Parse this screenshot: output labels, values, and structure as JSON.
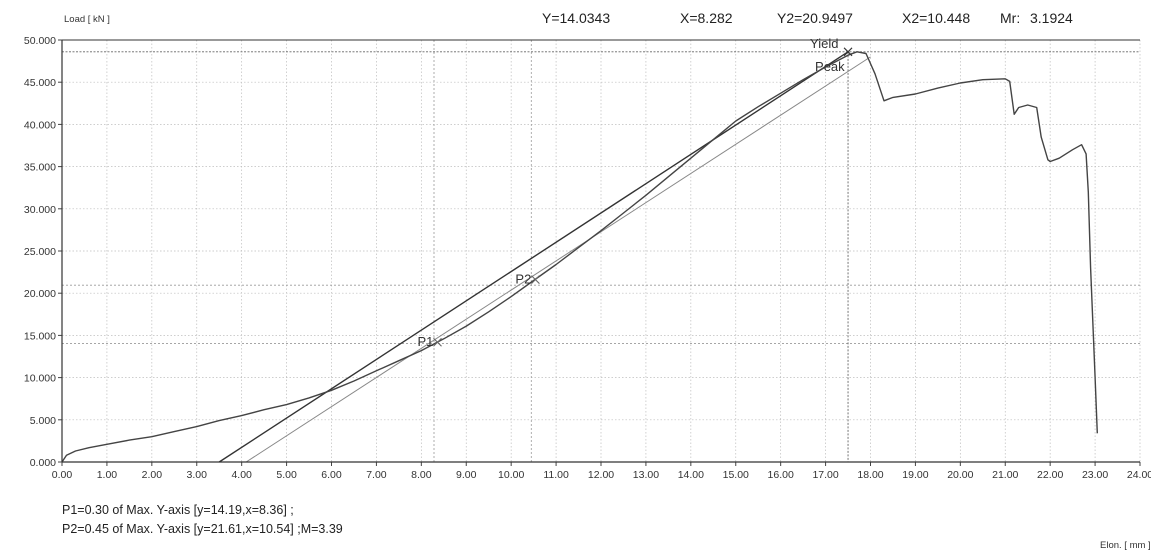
{
  "header": {
    "y_label": "Y=14.0343",
    "x_label": "X=8.282",
    "y2_label": "Y2=20.9497",
    "x2_label": "X2=10.448",
    "mr_name": "Mr:",
    "mr_value": "3.1924"
  },
  "footer": {
    "p1_text": "P1=0.30 of Max. Y-axis [y=14.19,x=8.36] ;",
    "p2_text": "P2=0.45 of Max. Y-axis [y=21.61,x=10.54] ;M=3.39"
  },
  "chart_data": {
    "type": "line",
    "ylabel": "Load [ kN ]",
    "xlabel": "Elon. [ mm ]",
    "xlim": [
      0,
      24
    ],
    "ylim": [
      0,
      50
    ],
    "grid": true,
    "x_ticks": [
      "0.00",
      "1.00",
      "2.00",
      "3.00",
      "4.00",
      "5.00",
      "6.00",
      "7.00",
      "8.00",
      "9.00",
      "10.00",
      "11.00",
      "12.00",
      "13.00",
      "14.00",
      "15.00",
      "16.00",
      "17.00",
      "18.00",
      "19.00",
      "20.00",
      "21.00",
      "22.00",
      "23.00",
      "24.00"
    ],
    "y_ticks": [
      "0.000",
      "5.000",
      "10.000",
      "15.000",
      "20.000",
      "25.000",
      "30.000",
      "35.000",
      "40.000",
      "45.000",
      "50.000"
    ],
    "series": [
      {
        "x": [
          0,
          0.1,
          0.3,
          0.6,
          1.0,
          1.5,
          2.0,
          2.5,
          3.0,
          3.5,
          4.0,
          4.5,
          5.0,
          5.5,
          6.0,
          6.5,
          7.0,
          7.5,
          8.0,
          8.5,
          9.0,
          9.5,
          10.0,
          10.5,
          11.0,
          11.5,
          12.0,
          12.5,
          13.0,
          13.5,
          14.0,
          14.5,
          15.0,
          15.5,
          16.0,
          16.5,
          17.0,
          17.5,
          17.7,
          17.9,
          18.0,
          18.1,
          18.3,
          18.5,
          19.0,
          19.5,
          20.0,
          20.5,
          21.0,
          21.1,
          21.2,
          21.3,
          21.5,
          21.7,
          21.8,
          21.95,
          22.0,
          22.2,
          22.5,
          22.7,
          22.8,
          22.85,
          22.9,
          23.0,
          23.05
        ],
        "y": [
          0,
          0.8,
          1.3,
          1.7,
          2.1,
          2.6,
          3.0,
          3.6,
          4.2,
          4.9,
          5.5,
          6.2,
          6.8,
          7.6,
          8.5,
          9.6,
          10.8,
          12.0,
          13.2,
          14.6,
          16.1,
          17.8,
          19.6,
          21.5,
          23.4,
          25.4,
          27.4,
          29.5,
          31.6,
          33.8,
          36.0,
          38.2,
          40.4,
          42.1,
          43.7,
          45.3,
          46.8,
          48.2,
          48.6,
          48.4,
          47.2,
          46.0,
          42.8,
          43.2,
          43.6,
          44.3,
          44.9,
          45.3,
          45.4,
          45.1,
          41.2,
          42.0,
          42.3,
          42.0,
          38.5,
          35.8,
          35.6,
          36.0,
          37.0,
          37.6,
          36.5,
          32.0,
          23.0,
          10.0,
          3.4
        ]
      }
    ],
    "reference_lines": [
      {
        "x": [
          3.5,
          17.5
        ],
        "y": [
          0,
          48.6
        ]
      },
      {
        "x": [
          4.1,
          18.0
        ],
        "y": [
          0,
          48.0
        ]
      }
    ],
    "cursor": {
      "x": 8.282,
      "y": 14.0343,
      "x2": 10.448,
      "y2": 20.9497
    },
    "markers": [
      {
        "label": "P1",
        "x": 8.36,
        "y": 14.19
      },
      {
        "label": "P2",
        "x": 10.54,
        "y": 21.61
      },
      {
        "label": "Yield",
        "x": 17.5,
        "y": 48.6
      },
      {
        "label": "Peak",
        "x": 17.5,
        "y": 48.6
      }
    ],
    "max_line_y": 48.6,
    "colors": {
      "curve": "#444444",
      "ref_dark": "#333333",
      "ref_light": "#888888",
      "grid": "#bdbdbd",
      "cursor": "#9a9a9a"
    }
  }
}
